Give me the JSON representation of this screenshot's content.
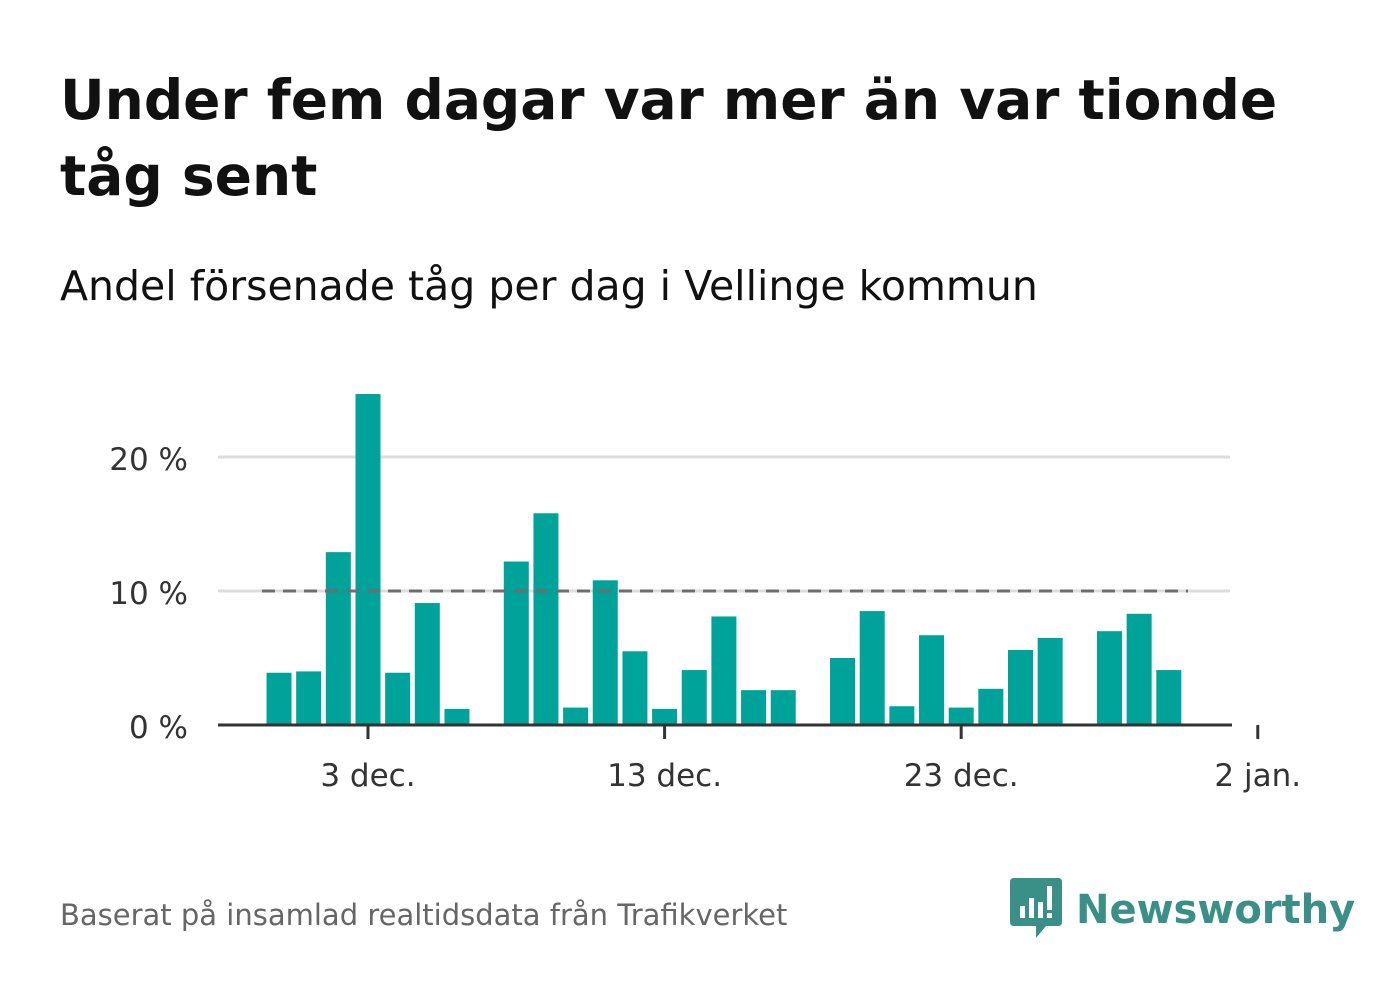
{
  "title": "Under fem dagar var mer än var tionde tåg sent",
  "subtitle": "Andel försenade tåg per dag i Vellinge kommun",
  "source": "Baserat på insamlad realtidsdata från Trafikverket",
  "brand": "Newsworthy",
  "colors": {
    "bar": "#00a39a",
    "reference_line": "#6e6e6e",
    "grid": "#dddddd",
    "axis": "#333333",
    "brand": "#3a8f86"
  },
  "chart_data": {
    "type": "bar",
    "title": "Under fem dagar var mer än var tionde tåg sent",
    "subtitle": "Andel försenade tåg per dag i Vellinge kommun",
    "xlabel": "",
    "ylabel": "",
    "x_tick_labels": [
      "3 dec.",
      "13 dec.",
      "23 dec.",
      "2 jan."
    ],
    "y_tick_labels": [
      "0 %",
      "10 %",
      "20 %"
    ],
    "ylim": [
      0,
      25
    ],
    "grid": true,
    "reference_line": {
      "value": 10,
      "style": "dashed"
    },
    "categories": [
      "2024-11-30",
      "2024-12-01",
      "2024-12-02",
      "2024-12-03",
      "2024-12-04",
      "2024-12-05",
      "2024-12-06",
      "2024-12-07",
      "2024-12-08",
      "2024-12-09",
      "2024-12-10",
      "2024-12-11",
      "2024-12-12",
      "2024-12-13",
      "2024-12-14",
      "2024-12-15",
      "2024-12-16",
      "2024-12-17",
      "2024-12-18",
      "2024-12-19",
      "2024-12-20",
      "2024-12-21",
      "2024-12-22",
      "2024-12-23",
      "2024-12-24",
      "2024-12-25",
      "2024-12-26",
      "2024-12-27",
      "2024-12-28",
      "2024-12-29",
      "2024-12-30",
      "2024-12-31",
      "2025-01-01"
    ],
    "values": [
      3.9,
      4.0,
      12.9,
      24.7,
      3.9,
      9.1,
      1.2,
      null,
      12.2,
      15.8,
      1.3,
      10.8,
      5.5,
      1.2,
      4.1,
      8.1,
      2.6,
      2.6,
      null,
      5.0,
      8.5,
      1.4,
      6.7,
      1.3,
      2.7,
      5.6,
      6.5,
      null,
      7.0,
      8.3,
      4.1,
      null,
      null
    ]
  }
}
